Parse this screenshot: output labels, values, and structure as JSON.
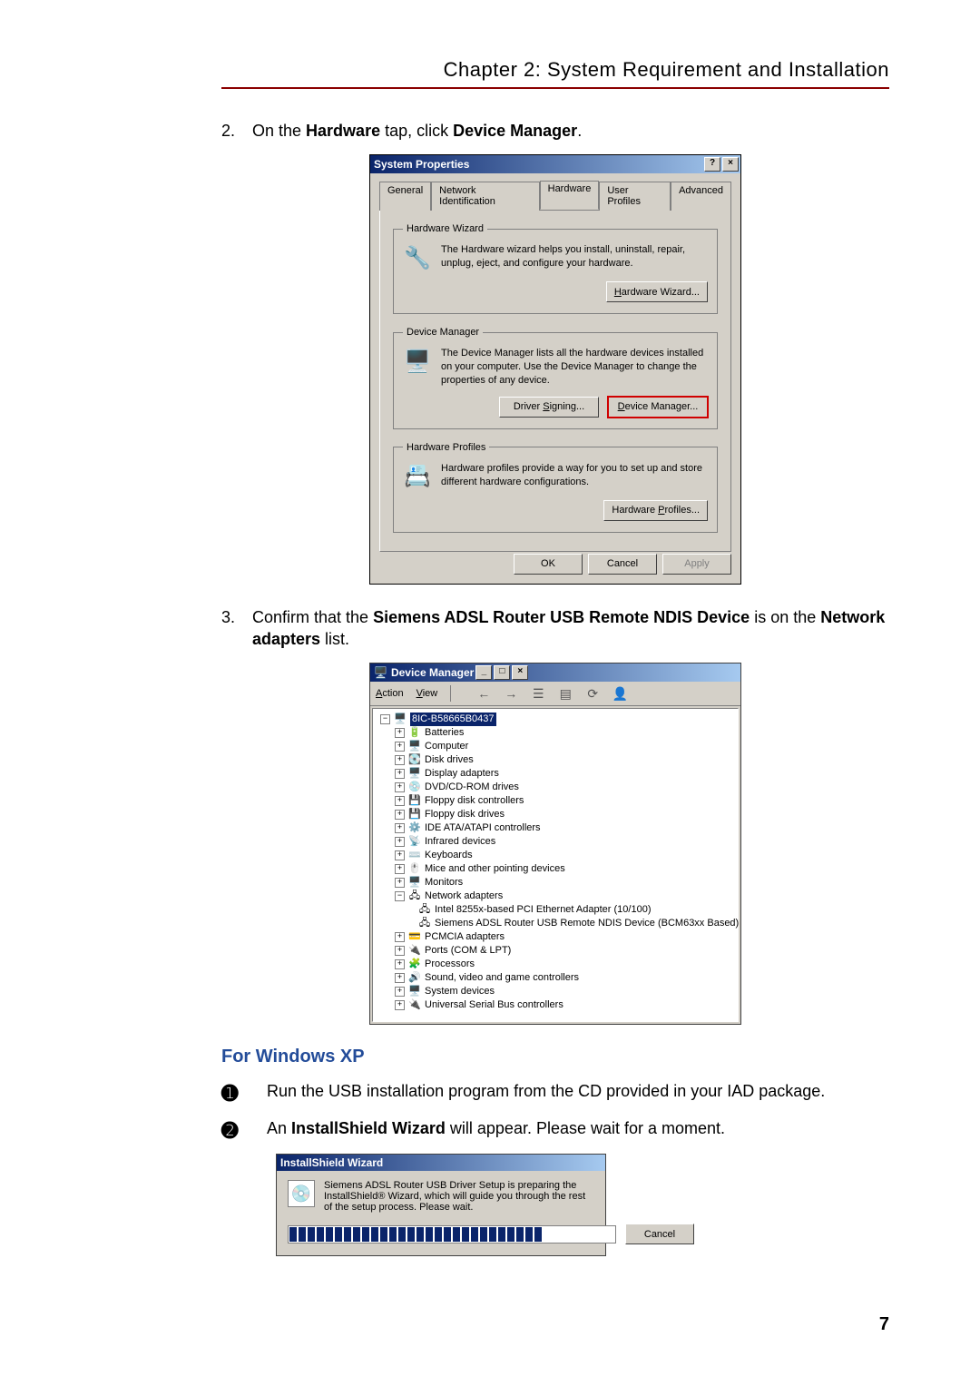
{
  "header": {
    "chapter": "Chapter 2: System Requirement and Installation"
  },
  "step2": {
    "num": "2.",
    "pre": "On the ",
    "b1": "Hardware",
    "mid": " tap, click ",
    "b2": "Device Manager",
    "post": "."
  },
  "sysprops": {
    "title": "System Properties",
    "help_btn": "?",
    "close_btn": "×",
    "tabs": {
      "general": "General",
      "network": "Network Identification",
      "hardware": "Hardware",
      "profiles": "User Profiles",
      "advanced": "Advanced"
    },
    "hw_wizard": {
      "legend": "Hardware Wizard",
      "text": "The Hardware wizard helps you install, uninstall, repair, unplug, eject, and configure your hardware.",
      "btn": "Hardware Wizard..."
    },
    "dev_mgr": {
      "legend": "Device Manager",
      "text": "The Device Manager lists all the hardware devices installed on your computer. Use the Device Manager to change the properties of any device.",
      "btn_sign": "Driver Signing...",
      "btn_mgr": "Device Manager..."
    },
    "hw_profiles": {
      "legend": "Hardware Profiles",
      "text": "Hardware profiles provide a way for you to set up and store different hardware configurations.",
      "btn": "Hardware Profiles..."
    },
    "ok": "OK",
    "cancel": "Cancel",
    "apply": "Apply",
    "colors": {
      "bg": "#d4d0c8",
      "title_grad_start": "#0a246a",
      "title_grad_end": "#a6caf0",
      "highlight": "#d00000"
    }
  },
  "step3": {
    "num": "3.",
    "pre": "Confirm that the ",
    "b1": "Siemens ADSL Router USB Remote NDIS Device",
    "mid": " is on the ",
    "b2": "Network adapters",
    "post": " list."
  },
  "devmgr": {
    "title": "Device Manager",
    "menu_action": "Action",
    "menu_view": "View",
    "root": "8IC-B58665B0437",
    "nodes": {
      "batteries": "Batteries",
      "computer": "Computer",
      "disk": "Disk drives",
      "display": "Display adapters",
      "dvd": "DVD/CD-ROM drives",
      "floppyctrl": "Floppy disk controllers",
      "floppy": "Floppy disk drives",
      "ide": "IDE ATA/ATAPI controllers",
      "infrared": "Infrared devices",
      "keyboards": "Keyboards",
      "mice": "Mice and other pointing devices",
      "monitors": "Monitors",
      "network": "Network adapters",
      "net_intel": "Intel 8255x-based PCI Ethernet Adapter (10/100)",
      "net_siemens": "Siemens ADSL Router USB Remote NDIS Device (BCM63xx Based)",
      "pcmcia": "PCMCIA adapters",
      "ports": "Ports (COM & LPT)",
      "processors": "Processors",
      "sound": "Sound, video and game controllers",
      "system": "System devices",
      "usb": "Universal Serial Bus controllers"
    },
    "minimize": "_",
    "maximize": "□",
    "close": "×"
  },
  "xp": {
    "heading": "For Windows XP",
    "step1_num": "➊",
    "step1_text": "Run the USB installation program from the CD provided in your IAD package.",
    "step2_num": "➋",
    "step2_pre": "An ",
    "step2_b": "InstallShield Wizard",
    "step2_post": " will appear. Please wait for a moment."
  },
  "iswiz": {
    "title": "InstallShield Wizard",
    "text": "Siemens ADSL Router USB Driver Setup is preparing the InstallShield® Wizard, which will guide you through the rest of the setup process. Please wait.",
    "cancel": "Cancel",
    "progress_filled": 28,
    "progress_total": 36
  },
  "page_num": "7"
}
